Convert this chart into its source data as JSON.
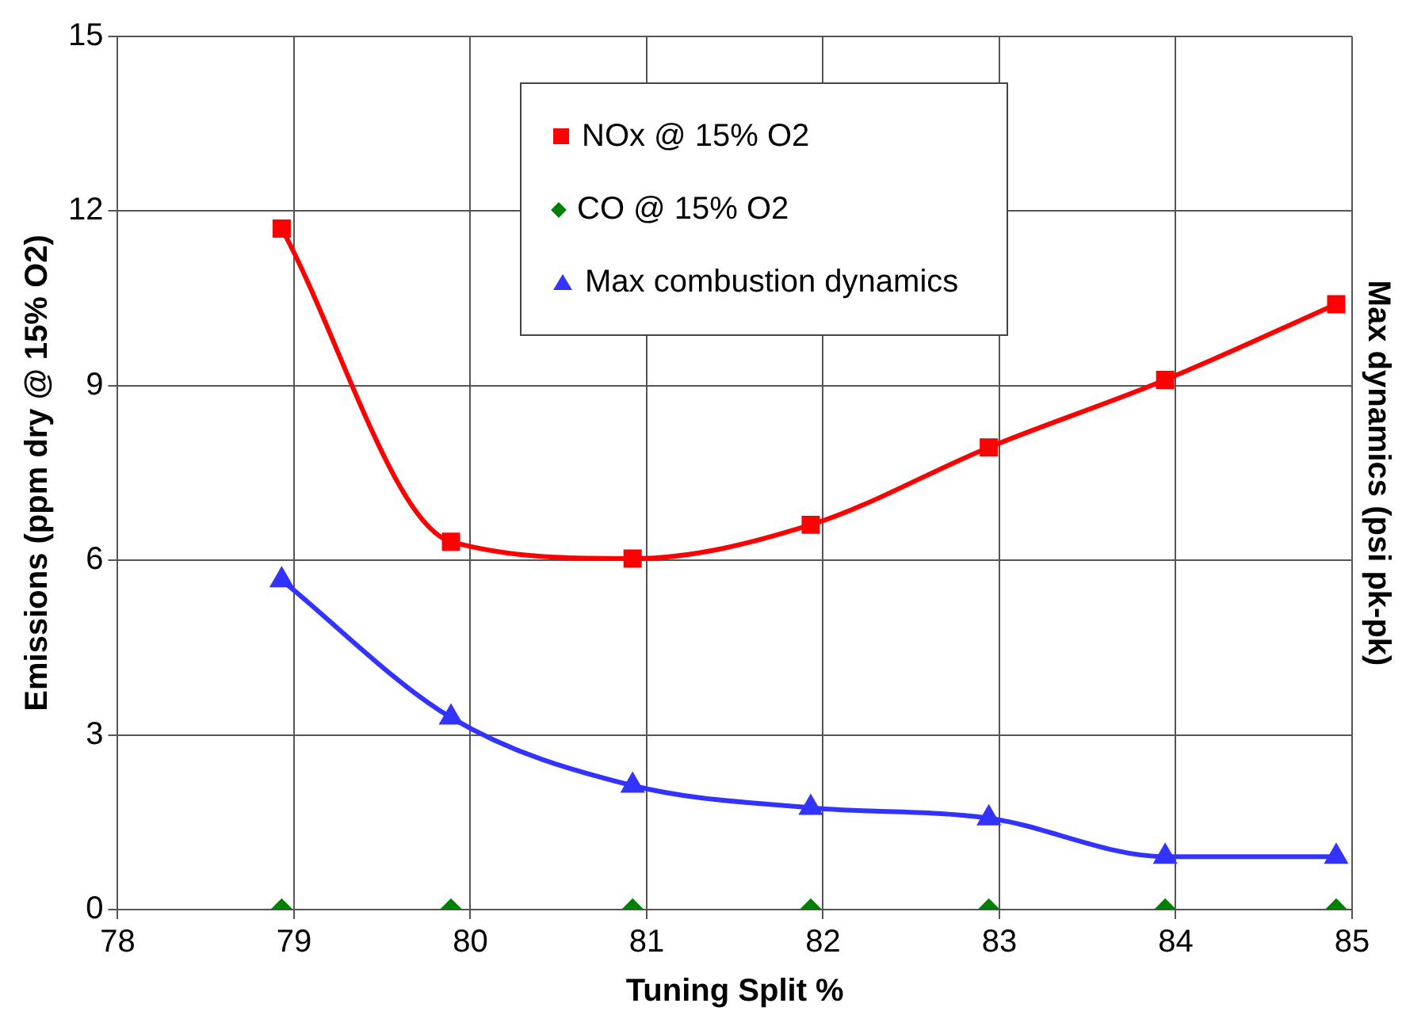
{
  "chart_data": {
    "type": "line",
    "xlabel": "Tuning Split %",
    "ylabel": "Emissions (ppm dry @ 15% O2)",
    "y2label": "Max dynamics (psi pk-pk)",
    "xlim": [
      78,
      85
    ],
    "xticks": [
      78,
      79,
      80,
      81,
      82,
      83,
      84,
      85
    ],
    "ylim": [
      0,
      15
    ],
    "yticks": [
      0,
      3,
      6,
      9,
      12,
      15
    ],
    "grid": true,
    "legend": "top",
    "x": [
      78.93,
      79.89,
      80.92,
      81.93,
      82.94,
      83.94,
      84.91
    ],
    "series": [
      {
        "name": "NOx @ 15% O2",
        "color": "#ff0000",
        "marker": "square",
        "values": [
          11.7,
          6.32,
          6.03,
          6.61,
          7.94,
          9.1,
          10.4
        ]
      },
      {
        "name": "CO @ 15% O2",
        "type": "scatter",
        "color": "#008000",
        "marker": "diamond",
        "values": [
          0,
          0,
          0,
          0,
          0,
          0,
          0
        ]
      },
      {
        "name": "Max combustion dynamics",
        "color": "#3333ff",
        "marker": "triangle",
        "values": [
          5.66,
          3.3,
          2.13,
          1.75,
          1.57,
          0.91,
          0.91
        ]
      }
    ]
  }
}
